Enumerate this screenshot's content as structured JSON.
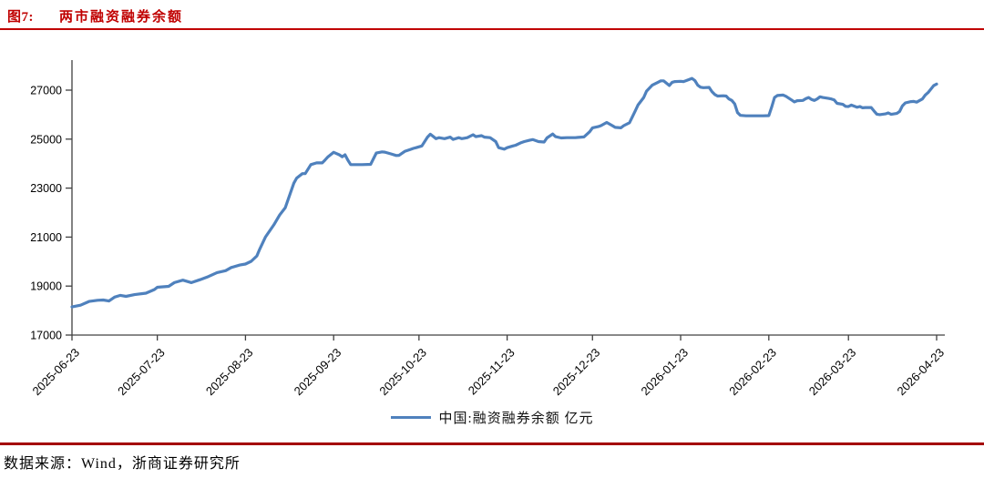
{
  "header": {
    "figure_label": "图7:",
    "title": "两市融资融券余额"
  },
  "footer": {
    "text": "数据来源：Wind，浙商证券研究所"
  },
  "colors": {
    "accent_red": "#C00000",
    "rule_bottom": "#A40000",
    "line_blue": "#4F81BD",
    "axis_gray": "#404040"
  },
  "chart_data": {
    "type": "line",
    "title": "两市融资融券余额",
    "xlabel": "",
    "ylabel": "",
    "unit": "亿元",
    "grid": false,
    "legend_position": "bottom",
    "ylim": [
      17000,
      27900
    ],
    "y_ticks": [
      17000,
      19000,
      21000,
      23000,
      25000,
      27000
    ],
    "x_ticks": [
      {
        "d": 0,
        "label": "2025-06-23"
      },
      {
        "d": 30,
        "label": "2025-07-23"
      },
      {
        "d": 61,
        "label": "2025-08-23"
      },
      {
        "d": 92,
        "label": "2025-09-23"
      },
      {
        "d": 122,
        "label": "2025-10-23"
      },
      {
        "d": 153,
        "label": "2025-11-23"
      },
      {
        "d": 183,
        "label": "2025-12-23"
      },
      {
        "d": 214,
        "label": "2026-01-23"
      },
      {
        "d": 245,
        "label": "2026-02-23"
      },
      {
        "d": 273,
        "label": "2026-03-23"
      },
      {
        "d": 304,
        "label": "2026-04-23"
      }
    ],
    "series": [
      {
        "name": "中国:融资融券余额 亿元",
        "color": "#4F81BD",
        "points": [
          [
            0,
            18150
          ],
          [
            3,
            18220
          ],
          [
            6,
            18370
          ],
          [
            9,
            18420
          ],
          [
            11,
            18430
          ],
          [
            13,
            18390
          ],
          [
            15,
            18550
          ],
          [
            17,
            18620
          ],
          [
            19,
            18580
          ],
          [
            22,
            18650
          ],
          [
            26,
            18710
          ],
          [
            29,
            18860
          ],
          [
            30,
            18950
          ],
          [
            34,
            18990
          ],
          [
            36,
            19140
          ],
          [
            39,
            19240
          ],
          [
            42,
            19140
          ],
          [
            45,
            19260
          ],
          [
            48,
            19390
          ],
          [
            51,
            19550
          ],
          [
            54,
            19630
          ],
          [
            56,
            19760
          ],
          [
            59,
            19860
          ],
          [
            61,
            19900
          ],
          [
            63,
            20010
          ],
          [
            65,
            20230
          ],
          [
            66,
            20500
          ],
          [
            68,
            21000
          ],
          [
            71,
            21500
          ],
          [
            73,
            21900
          ],
          [
            75,
            22200
          ],
          [
            78,
            23200
          ],
          [
            79,
            23410
          ],
          [
            81,
            23590
          ],
          [
            82,
            23590
          ],
          [
            84,
            23960
          ],
          [
            86,
            24030
          ],
          [
            88,
            24030
          ],
          [
            89,
            24150
          ],
          [
            90,
            24280
          ],
          [
            92,
            24460
          ],
          [
            94,
            24360
          ],
          [
            95,
            24280
          ],
          [
            96,
            24360
          ],
          [
            97,
            24140
          ],
          [
            98,
            23960
          ],
          [
            100,
            23960
          ],
          [
            102,
            23960
          ],
          [
            105,
            23970
          ],
          [
            107,
            24430
          ],
          [
            109,
            24480
          ],
          [
            110,
            24470
          ],
          [
            112,
            24400
          ],
          [
            114,
            24330
          ],
          [
            115,
            24340
          ],
          [
            117,
            24500
          ],
          [
            119,
            24580
          ],
          [
            120,
            24620
          ],
          [
            121,
            24650
          ],
          [
            123,
            24720
          ],
          [
            125,
            25080
          ],
          [
            126,
            25200
          ],
          [
            128,
            25020
          ],
          [
            129,
            25060
          ],
          [
            131,
            25020
          ],
          [
            133,
            25080
          ],
          [
            134,
            24990
          ],
          [
            136,
            25060
          ],
          [
            137,
            25020
          ],
          [
            139,
            25060
          ],
          [
            141,
            25180
          ],
          [
            142,
            25100
          ],
          [
            144,
            25140
          ],
          [
            145,
            25080
          ],
          [
            147,
            25060
          ],
          [
            149,
            24900
          ],
          [
            150,
            24650
          ],
          [
            152,
            24590
          ],
          [
            153,
            24650
          ],
          [
            155,
            24720
          ],
          [
            156,
            24750
          ],
          [
            158,
            24860
          ],
          [
            159,
            24900
          ],
          [
            161,
            24960
          ],
          [
            162,
            24980
          ],
          [
            164,
            24900
          ],
          [
            166,
            24880
          ],
          [
            167,
            25050
          ],
          [
            169,
            25210
          ],
          [
            170,
            25100
          ],
          [
            172,
            25050
          ],
          [
            174,
            25060
          ],
          [
            177,
            25060
          ],
          [
            178,
            25070
          ],
          [
            180,
            25090
          ],
          [
            182,
            25300
          ],
          [
            183,
            25460
          ],
          [
            185,
            25510
          ],
          [
            186,
            25550
          ],
          [
            188,
            25680
          ],
          [
            190,
            25550
          ],
          [
            191,
            25480
          ],
          [
            193,
            25460
          ],
          [
            194,
            25550
          ],
          [
            196,
            25670
          ],
          [
            198,
            26140
          ],
          [
            199,
            26390
          ],
          [
            201,
            26700
          ],
          [
            202,
            26960
          ],
          [
            204,
            27200
          ],
          [
            206,
            27320
          ],
          [
            207,
            27380
          ],
          [
            208,
            27380
          ],
          [
            210,
            27190
          ],
          [
            211,
            27320
          ],
          [
            212,
            27350
          ],
          [
            214,
            27360
          ],
          [
            215,
            27350
          ],
          [
            216,
            27390
          ],
          [
            218,
            27480
          ],
          [
            219,
            27390
          ],
          [
            220,
            27200
          ],
          [
            221,
            27120
          ],
          [
            222,
            27100
          ],
          [
            224,
            27110
          ],
          [
            225,
            26940
          ],
          [
            226,
            26820
          ],
          [
            227,
            26760
          ],
          [
            229,
            26770
          ],
          [
            230,
            26760
          ],
          [
            231,
            26640
          ],
          [
            232,
            26580
          ],
          [
            233,
            26440
          ],
          [
            234,
            26080
          ],
          [
            235,
            25970
          ],
          [
            237,
            25950
          ],
          [
            240,
            25950
          ],
          [
            242,
            25950
          ],
          [
            243,
            25950
          ],
          [
            245,
            25960
          ],
          [
            246,
            26300
          ],
          [
            247,
            26700
          ],
          [
            248,
            26780
          ],
          [
            249,
            26790
          ],
          [
            250,
            26800
          ],
          [
            251,
            26750
          ],
          [
            253,
            26600
          ],
          [
            254,
            26520
          ],
          [
            255,
            26570
          ],
          [
            257,
            26580
          ],
          [
            258,
            26650
          ],
          [
            259,
            26700
          ],
          [
            260,
            26620
          ],
          [
            261,
            26580
          ],
          [
            262,
            26640
          ],
          [
            263,
            26730
          ],
          [
            264,
            26700
          ],
          [
            266,
            26660
          ],
          [
            267,
            26640
          ],
          [
            268,
            26600
          ],
          [
            269,
            26460
          ],
          [
            271,
            26420
          ],
          [
            272,
            26340
          ],
          [
            273,
            26330
          ],
          [
            274,
            26390
          ],
          [
            276,
            26300
          ],
          [
            277,
            26330
          ],
          [
            278,
            26280
          ],
          [
            279,
            26290
          ],
          [
            281,
            26290
          ],
          [
            282,
            26150
          ],
          [
            283,
            26020
          ],
          [
            284,
            26000
          ],
          [
            286,
            26030
          ],
          [
            287,
            26070
          ],
          [
            288,
            26010
          ],
          [
            290,
            26050
          ],
          [
            291,
            26130
          ],
          [
            292,
            26360
          ],
          [
            293,
            26480
          ],
          [
            295,
            26530
          ],
          [
            296,
            26540
          ],
          [
            297,
            26510
          ],
          [
            299,
            26640
          ],
          [
            300,
            26800
          ],
          [
            301,
            26900
          ],
          [
            302,
            27050
          ],
          [
            303,
            27190
          ],
          [
            304,
            27250
          ]
        ]
      }
    ]
  }
}
